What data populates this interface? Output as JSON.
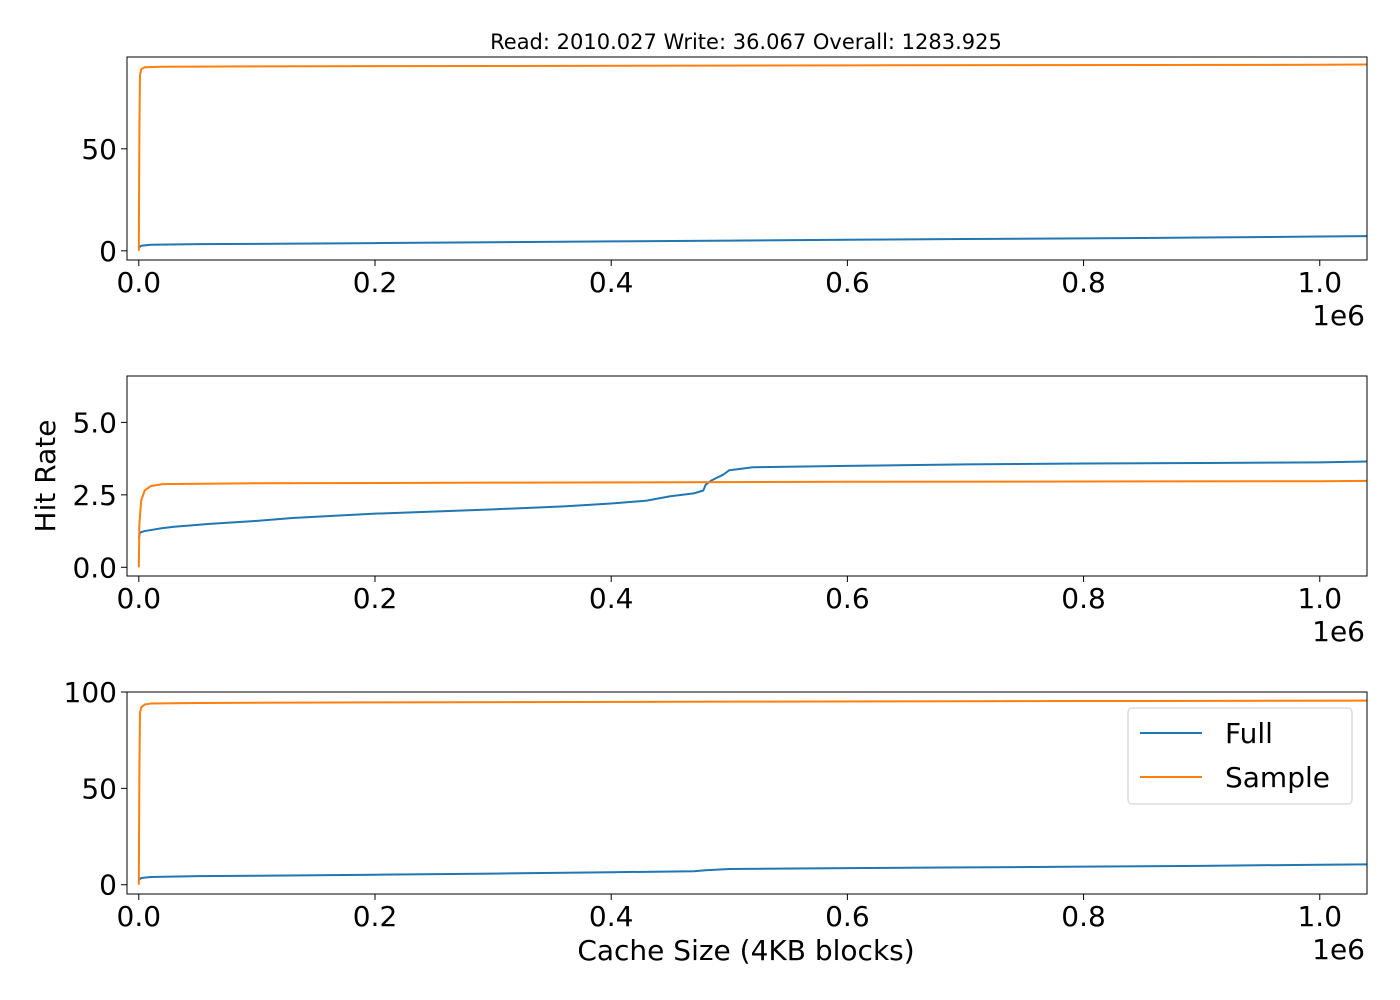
{
  "title": "Read: 2010.027 Write: 36.067 Overall: 1283.925",
  "ylabel": "Hit Rate",
  "xlabel": "Cache Size (4KB blocks)",
  "colors": {
    "Full": "#1f77b4",
    "Sample": "#ff7f0e"
  },
  "legend": {
    "placement": "upper-right",
    "panel": 3,
    "entries": [
      "Full",
      "Sample"
    ]
  },
  "chart_data": [
    {
      "type": "line",
      "title": "Read: 2010.027 Write: 36.067 Overall: 1283.925",
      "xlabel": "",
      "ylabel": "",
      "x_offset_label": "1e6",
      "xlim": [
        -10000,
        1040000
      ],
      "ylim": [
        -4.5,
        95
      ],
      "xticks": [
        0,
        200000,
        400000,
        600000,
        800000,
        1000000
      ],
      "xtick_labels": [
        "0.0",
        "0.2",
        "0.4",
        "0.6",
        "0.8",
        "1.0"
      ],
      "yticks": [
        0,
        50
      ],
      "ytick_labels": [
        "0",
        "50"
      ],
      "series": [
        {
          "name": "Full",
          "x": [
            0,
            2000,
            10000,
            50000,
            100000,
            200000,
            300000,
            400000,
            500000,
            600000,
            700000,
            800000,
            900000,
            1000000,
            1040000
          ],
          "y": [
            1.5,
            2.5,
            3.0,
            3.3,
            3.4,
            3.8,
            4.2,
            4.6,
            5.0,
            5.4,
            5.8,
            6.1,
            6.5,
            7.0,
            7.2
          ]
        },
        {
          "name": "Sample",
          "x": [
            0,
            500,
            1000,
            2000,
            5000,
            20000,
            100000,
            300000,
            600000,
            1000000,
            1040000
          ],
          "y": [
            0,
            60,
            86,
            89,
            90,
            90.2,
            90.4,
            90.6,
            90.9,
            91.2,
            91.3
          ]
        }
      ]
    },
    {
      "type": "line",
      "title": "",
      "xlabel": "",
      "ylabel": "Hit Rate",
      "x_offset_label": "1e6",
      "xlim": [
        -10000,
        1040000
      ],
      "ylim": [
        -0.3,
        6.6
      ],
      "xticks": [
        0,
        200000,
        400000,
        600000,
        800000,
        1000000
      ],
      "xtick_labels": [
        "0.0",
        "0.2",
        "0.4",
        "0.6",
        "0.8",
        "1.0"
      ],
      "yticks": [
        0,
        2.5,
        5.0
      ],
      "ytick_labels": [
        "0.0",
        "2.5",
        "5.0"
      ],
      "series": [
        {
          "name": "Full",
          "x": [
            0,
            1000,
            5000,
            20000,
            30000,
            60000,
            100000,
            130000,
            200000,
            300000,
            360000,
            400000,
            430000,
            450000,
            470000,
            478000,
            480000,
            485000,
            495000,
            500000,
            520000,
            600000,
            700000,
            800000,
            900000,
            1000000,
            1040000
          ],
          "y": [
            1.0,
            1.2,
            1.25,
            1.35,
            1.4,
            1.5,
            1.6,
            1.7,
            1.85,
            2.0,
            2.1,
            2.2,
            2.3,
            2.45,
            2.55,
            2.65,
            2.85,
            3.0,
            3.2,
            3.35,
            3.45,
            3.5,
            3.55,
            3.58,
            3.6,
            3.62,
            3.65
          ]
        },
        {
          "name": "Sample",
          "x": [
            0,
            500,
            2000,
            5000,
            10000,
            20000,
            100000,
            300000,
            600000,
            1000000,
            1040000
          ],
          "y": [
            0,
            1.5,
            2.3,
            2.65,
            2.8,
            2.87,
            2.9,
            2.92,
            2.95,
            2.97,
            2.98
          ]
        }
      ]
    },
    {
      "type": "line",
      "title": "",
      "xlabel": "Cache Size (4KB blocks)",
      "ylabel": "",
      "x_offset_label": "1e6",
      "xlim": [
        -10000,
        1040000
      ],
      "ylim": [
        -4.8,
        100
      ],
      "xticks": [
        0,
        200000,
        400000,
        600000,
        800000,
        1000000
      ],
      "xtick_labels": [
        "0.0",
        "0.2",
        "0.4",
        "0.6",
        "0.8",
        "1.0"
      ],
      "yticks": [
        0,
        50,
        100
      ],
      "ytick_labels": [
        "0",
        "50",
        "100"
      ],
      "series": [
        {
          "name": "Full",
          "x": [
            0,
            2000,
            10000,
            50000,
            100000,
            200000,
            300000,
            400000,
            470000,
            480000,
            500000,
            600000,
            700000,
            800000,
            900000,
            1000000,
            1040000
          ],
          "y": [
            2.5,
            3.5,
            4.0,
            4.5,
            4.7,
            5.2,
            5.8,
            6.5,
            7.0,
            7.5,
            8.2,
            8.6,
            9.0,
            9.4,
            9.8,
            10.4,
            10.6
          ]
        },
        {
          "name": "Sample",
          "x": [
            0,
            500,
            1000,
            2000,
            5000,
            10000,
            50000,
            200000,
            500000,
            800000,
            1040000
          ],
          "y": [
            0,
            60,
            89,
            92,
            93.5,
            94,
            94.3,
            94.6,
            95,
            95.3,
            95.5
          ]
        }
      ]
    }
  ]
}
